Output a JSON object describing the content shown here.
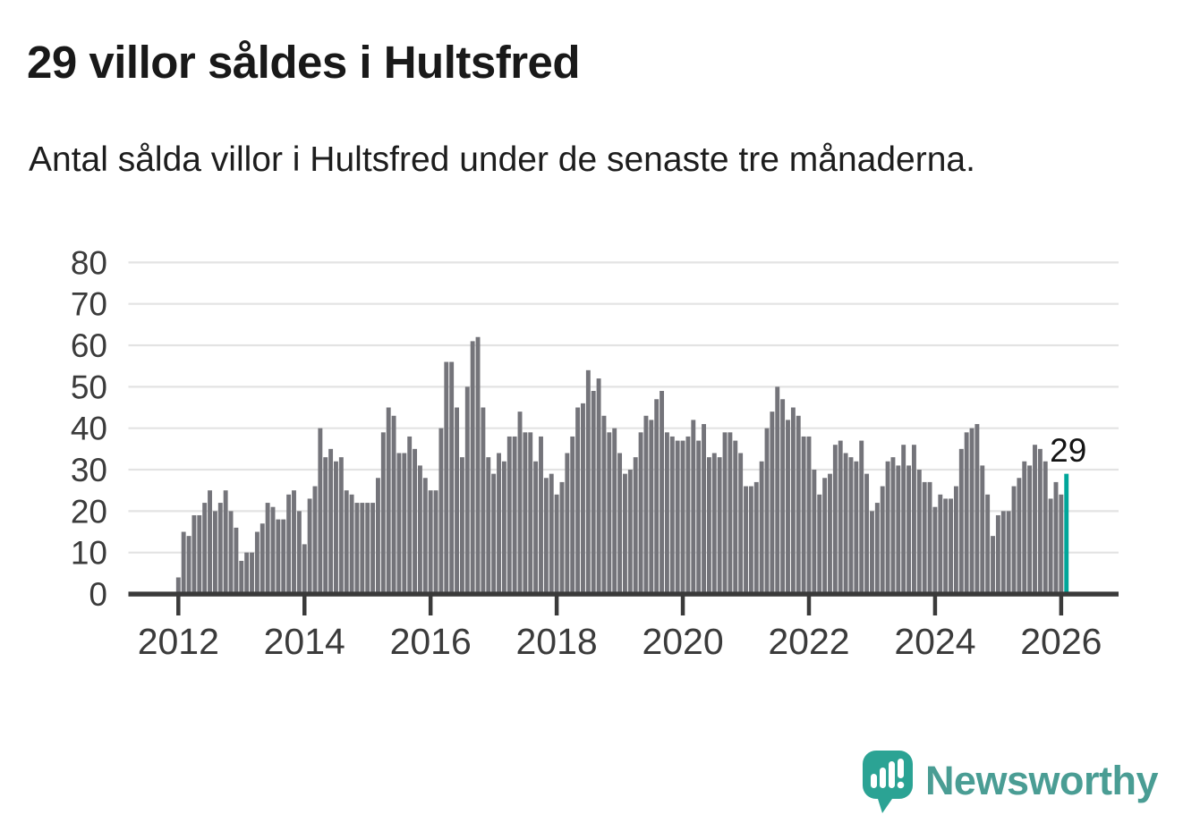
{
  "header": {
    "title": "29 villor såldes i Hultsfred",
    "subtitle": "Antal sålda villor i Hultsfred under de senaste tre månaderna."
  },
  "chart_data": {
    "type": "bar",
    "title": "29 villor såldes i Hultsfred",
    "subtitle": "Antal sålda villor i Hultsfred under de senaste tre månaderna.",
    "frequency": "monthly",
    "x_start": "2012-01",
    "x_end": "2026-02",
    "x_tick_labels": [
      "2012",
      "2014",
      "2016",
      "2018",
      "2020",
      "2022",
      "2024",
      "2026"
    ],
    "y_ticks": [
      0,
      10,
      20,
      30,
      40,
      50,
      60,
      70,
      80
    ],
    "ylim": [
      0,
      80
    ],
    "grid": true,
    "legend": "none",
    "bar_color": "#74747a",
    "values": [
      4,
      15,
      14,
      19,
      19,
      22,
      25,
      20,
      22,
      25,
      20,
      16,
      8,
      10,
      10,
      15,
      17,
      22,
      21,
      18,
      18,
      24,
      25,
      20,
      12,
      23,
      26,
      40,
      33,
      35,
      32,
      33,
      25,
      24,
      22,
      22,
      22,
      22,
      28,
      39,
      45,
      43,
      34,
      34,
      38,
      35,
      31,
      28,
      25,
      25,
      40,
      56,
      56,
      45,
      33,
      50,
      61,
      62,
      45,
      33,
      29,
      34,
      32,
      38,
      38,
      44,
      39,
      39,
      32,
      38,
      28,
      29,
      24,
      27,
      34,
      38,
      45,
      46,
      54,
      49,
      52,
      43,
      39,
      40,
      34,
      29,
      30,
      33,
      39,
      43,
      42,
      47,
      49,
      39,
      38,
      37,
      37,
      38,
      42,
      37,
      41,
      33,
      34,
      33,
      39,
      39,
      37,
      34,
      26,
      26,
      27,
      32,
      40,
      44,
      50,
      47,
      42,
      45,
      43,
      38,
      38,
      30,
      24,
      28,
      29,
      36,
      37,
      34,
      33,
      32,
      37,
      29,
      20,
      22,
      26,
      32,
      33,
      31,
      36,
      31,
      36,
      30,
      27,
      27,
      21,
      24,
      23,
      23,
      26,
      35,
      39,
      40,
      41,
      31,
      24,
      14,
      19,
      20,
      20,
      26,
      28,
      32,
      31,
      36,
      35,
      32,
      23,
      27,
      24,
      29
    ],
    "highlight": {
      "index": 169,
      "value": 29,
      "label": "29",
      "color": "#00a69a"
    }
  },
  "annotation": {
    "label": "29",
    "color": "#141414"
  },
  "axis_colors": {
    "grid": "#e3e3e3",
    "axis_line": "#3a3a3a",
    "tick_text": "#3b3b3b"
  },
  "footer": {
    "brand": "Newsworthy",
    "brand_color": "#4a9d94",
    "logo_icon": "newsworthy-speech-bubble-bar-chart-icon",
    "logo_bubble_color": "#2ba394"
  }
}
